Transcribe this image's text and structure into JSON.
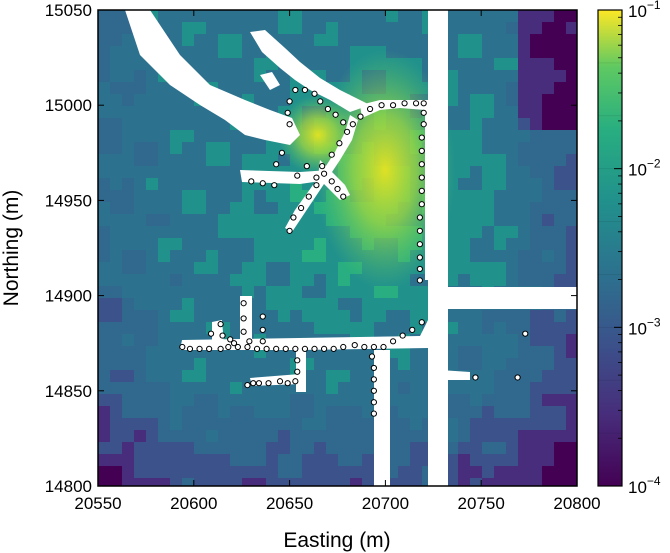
{
  "chart_data": {
    "type": "heatmap",
    "xlabel": "Easting (m)",
    "ylabel": "Northing (m)",
    "xlim": [
      20550,
      20800
    ],
    "ylim": [
      14800,
      15050
    ],
    "x_ticks": [
      "20550",
      "20600",
      "20650",
      "20700",
      "20750",
      "20800"
    ],
    "y_ticks": [
      "14800",
      "14850",
      "14900",
      "14950",
      "15000",
      "15050"
    ],
    "colorbar": {
      "scale": "log",
      "range": [
        0.0001,
        0.1
      ],
      "colormap": "viridis",
      "ticks": [
        {
          "base": "10",
          "exp": "−4",
          "value": 0.0001
        },
        {
          "base": "10",
          "exp": "−3",
          "value": 0.001
        },
        {
          "base": "10",
          "exp": "−2",
          "value": 0.01
        },
        {
          "base": "10",
          "exp": "−1",
          "value": 0.1
        }
      ]
    },
    "colors": {
      "low": "#440154",
      "mid_low": "#3b528b",
      "mid": "#21918c",
      "mid_high": "#5ec962",
      "high": "#fde725",
      "void": "#ffffff",
      "marker_fill": "#ffffff",
      "marker_edge": "#000000"
    },
    "sample_points": [
      [
        20653,
        15008
      ],
      [
        20658,
        15008
      ],
      [
        20663,
        15006
      ],
      [
        20666,
        15002
      ],
      [
        20670,
        14998
      ],
      [
        20674,
        14995
      ],
      [
        20678,
        14991
      ],
      [
        20650,
        15002
      ],
      [
        20649,
        14996
      ],
      [
        20650,
        14990
      ],
      [
        20683,
        14990
      ],
      [
        20687,
        14994
      ],
      [
        20692,
        14998
      ],
      [
        20698,
        15000
      ],
      [
        20704,
        15000
      ],
      [
        20710,
        15001
      ],
      [
        20716,
        15001
      ],
      [
        20720,
        15001
      ],
      [
        20720,
        14996
      ],
      [
        20720,
        14990
      ],
      [
        20719,
        14983
      ],
      [
        20719,
        14976
      ],
      [
        20719,
        14969
      ],
      [
        20719,
        14962
      ],
      [
        20719,
        14955
      ],
      [
        20719,
        14948
      ],
      [
        20718,
        14941
      ],
      [
        20718,
        14934
      ],
      [
        20718,
        14927
      ],
      [
        20718,
        14920
      ],
      [
        20718,
        14914
      ],
      [
        20718,
        14908
      ],
      [
        20680,
        14986
      ],
      [
        20676,
        14980
      ],
      [
        20672,
        14974
      ],
      [
        20667,
        14968
      ],
      [
        20664,
        14962
      ],
      [
        20646,
        14975
      ],
      [
        20643,
        14969
      ],
      [
        20668,
        14964
      ],
      [
        20672,
        14960
      ],
      [
        20675,
        14956
      ],
      [
        20678,
        14952
      ],
      [
        20664,
        14958
      ],
      [
        20660,
        14952
      ],
      [
        20656,
        14946
      ],
      [
        20652,
        14941
      ],
      [
        20650,
        14934
      ],
      [
        20630,
        14960
      ],
      [
        20636,
        14959
      ],
      [
        20642,
        14958
      ],
      [
        20659,
        14968
      ],
      [
        20654,
        14963
      ],
      [
        20594,
        14873
      ],
      [
        20598,
        14872
      ],
      [
        20603,
        14872
      ],
      [
        20608,
        14872
      ],
      [
        20614,
        14872
      ],
      [
        20618,
        14873
      ],
      [
        20623,
        14873
      ],
      [
        20628,
        14873
      ],
      [
        20633,
        14872
      ],
      [
        20638,
        14872
      ],
      [
        20643,
        14872
      ],
      [
        20648,
        14872
      ],
      [
        20653,
        14872
      ],
      [
        20658,
        14872
      ],
      [
        20663,
        14872
      ],
      [
        20668,
        14872
      ],
      [
        20673,
        14872
      ],
      [
        20678,
        14873
      ],
      [
        20684,
        14874
      ],
      [
        20689,
        14873
      ],
      [
        20694,
        14873
      ],
      [
        20699,
        14873
      ],
      [
        20704,
        14876
      ],
      [
        20709,
        14879
      ],
      [
        20714,
        14882
      ],
      [
        20719,
        14886
      ],
      [
        20614,
        14885
      ],
      [
        20615,
        14879
      ],
      [
        20619,
        14877
      ],
      [
        20621,
        14875
      ],
      [
        20609,
        14880
      ],
      [
        20626,
        14896
      ],
      [
        20626,
        14888
      ],
      [
        20626,
        14881
      ],
      [
        20629,
        14876
      ],
      [
        20636,
        14889
      ],
      [
        20636,
        14882
      ],
      [
        20636,
        14876
      ],
      [
        20654,
        14866
      ],
      [
        20654,
        14860
      ],
      [
        20653,
        14855
      ],
      [
        20649,
        14854
      ],
      [
        20628,
        14853
      ],
      [
        20631,
        14854
      ],
      [
        20634,
        14854
      ],
      [
        20639,
        14854
      ],
      [
        20645,
        14855
      ],
      [
        20693,
        14868
      ],
      [
        20694,
        14862
      ],
      [
        20694,
        14856
      ],
      [
        20694,
        14850
      ],
      [
        20694,
        14844
      ],
      [
        20694,
        14838
      ],
      [
        20747,
        14857
      ],
      [
        20769,
        14857
      ],
      [
        20773,
        14880
      ]
    ]
  }
}
